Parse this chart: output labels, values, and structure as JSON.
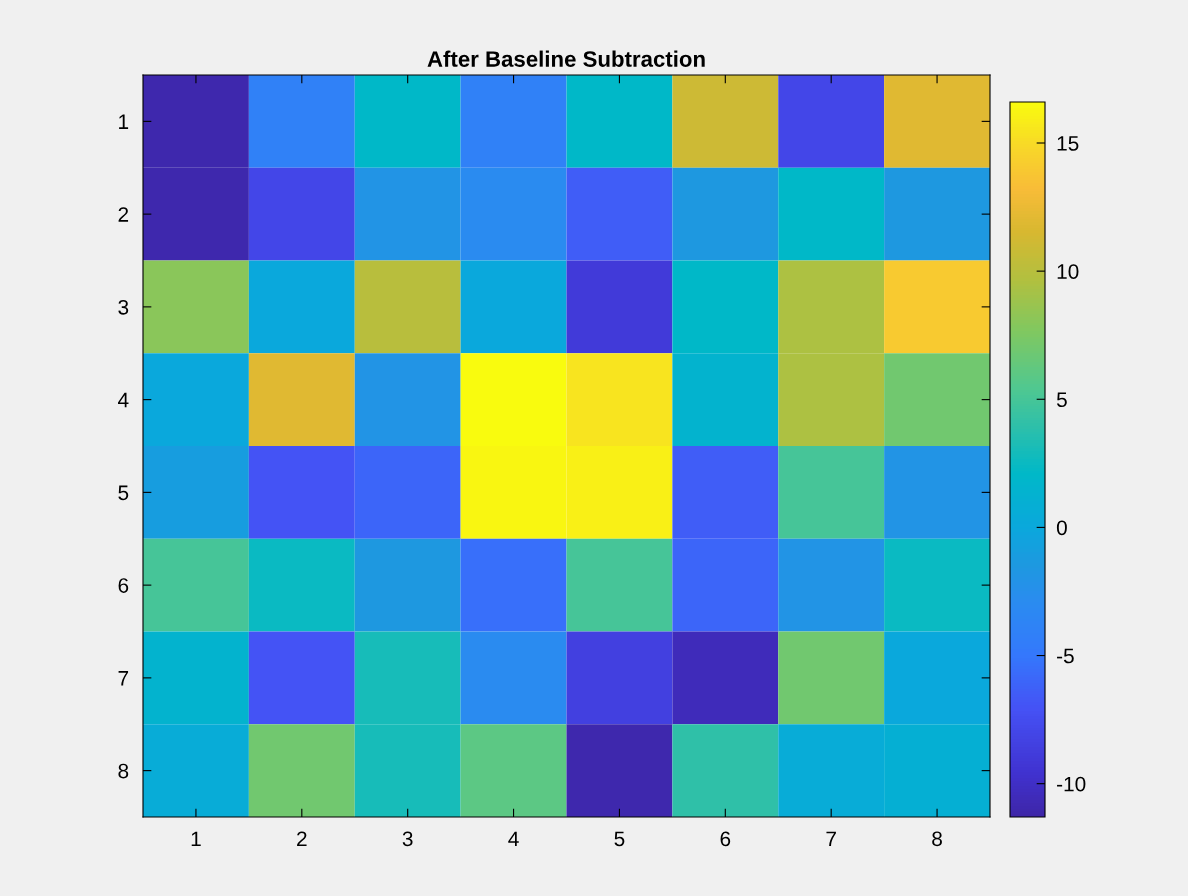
{
  "chart_data": {
    "type": "heatmap",
    "title": "After Baseline Subtraction",
    "categories": [
      "1",
      "2",
      "3",
      "4",
      "5",
      "6",
      "7",
      "8"
    ],
    "y_categories": [
      "1",
      "2",
      "3",
      "4",
      "5",
      "6",
      "7",
      "8"
    ],
    "cells": [
      [
        -11,
        -4,
        2,
        -4,
        2,
        11,
        -8,
        12
      ],
      [
        -11,
        -8,
        -2,
        -3,
        -6.5,
        -1.5,
        2,
        -1.5
      ],
      [
        8,
        0,
        10,
        0,
        -9,
        2,
        9.5,
        14
      ],
      [
        0,
        12,
        -2,
        16.6,
        15.5,
        1.5,
        9.5,
        7
      ],
      [
        -1,
        -7,
        -6,
        16.3,
        16,
        -6.5,
        5,
        -2
      ],
      [
        5,
        2.5,
        -1.5,
        -5.5,
        5,
        -6,
        -2,
        2.5
      ],
      [
        1.5,
        -7,
        3,
        -3,
        -8.5,
        -10.5,
        7,
        0
      ],
      [
        0.5,
        7,
        3,
        6,
        -11,
        4,
        0.5,
        1
      ]
    ],
    "clim": [
      -11.3,
      16.6
    ],
    "cticks": [
      -10,
      -5,
      0,
      5,
      10,
      15
    ]
  }
}
